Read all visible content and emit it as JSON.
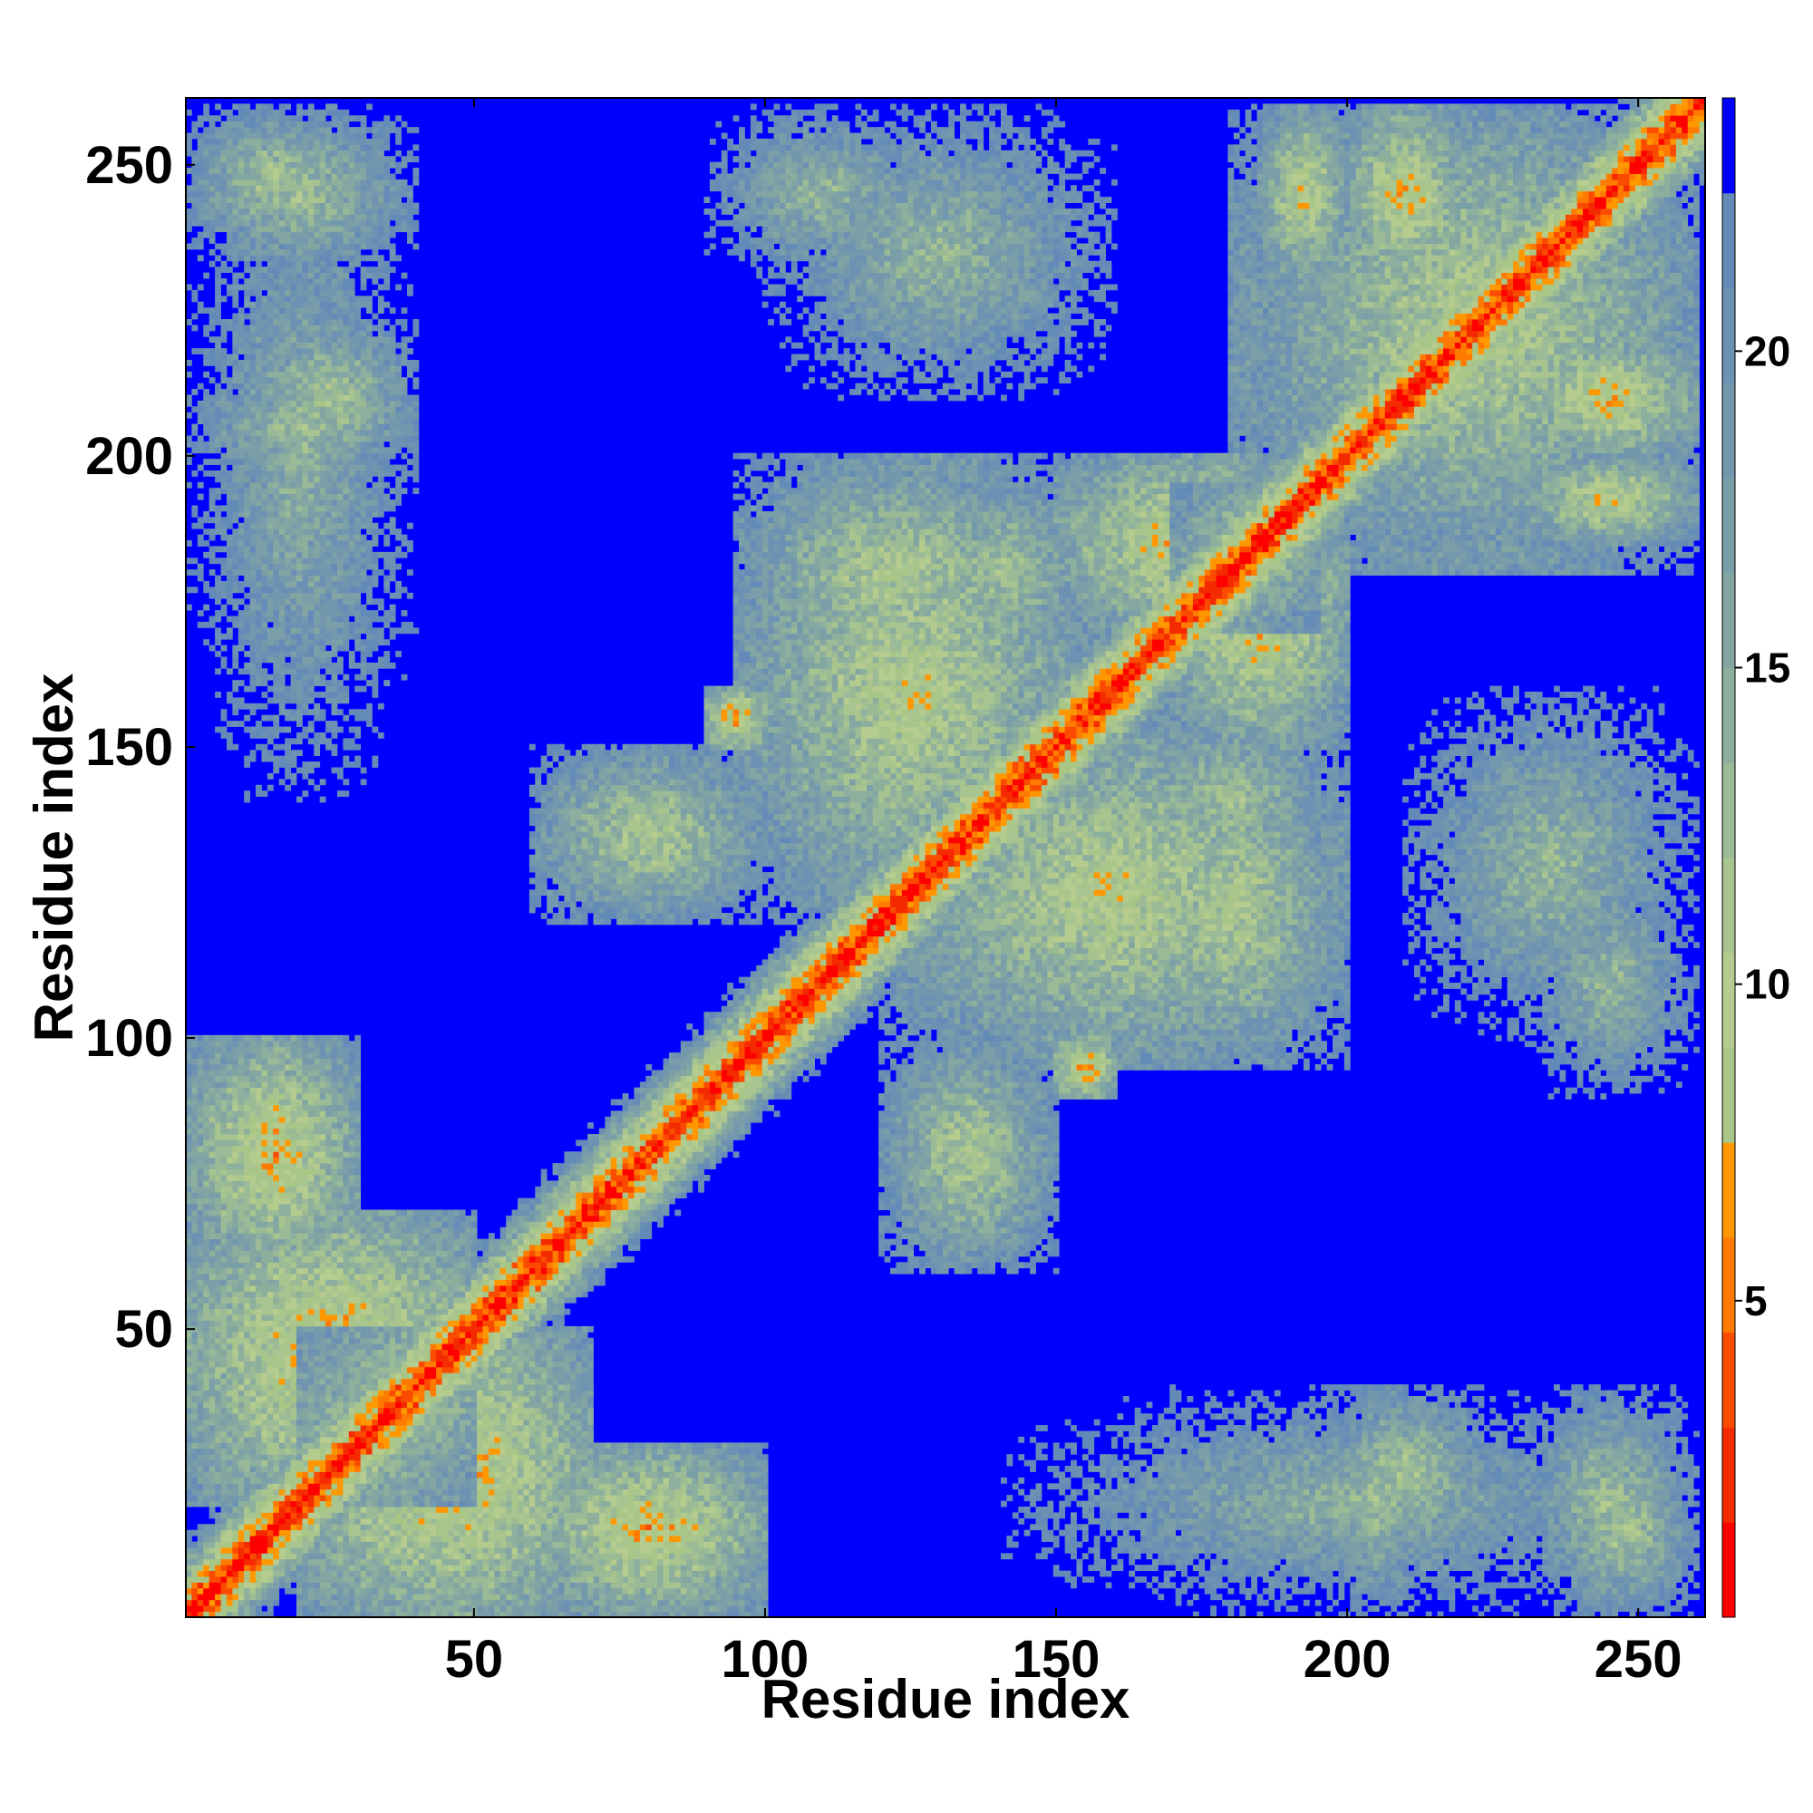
{
  "chart_data": {
    "type": "heatmap",
    "title": "",
    "xlabel": "Residue index",
    "ylabel": "Residue index",
    "n_residues": 261,
    "xlim": [
      1,
      261
    ],
    "ylim": [
      1,
      261
    ],
    "x_ticks": [
      50,
      100,
      150,
      200,
      250
    ],
    "y_ticks": [
      50,
      100,
      150,
      200,
      250
    ],
    "colorbar": {
      "range": [
        0,
        24
      ],
      "ticks": [
        5,
        10,
        15,
        20
      ],
      "bins": [
        {
          "from": 0,
          "to": 1.5,
          "color": "#ff0000"
        },
        {
          "from": 1.5,
          "to": 3,
          "color": "#f42a00"
        },
        {
          "from": 3,
          "to": 4.5,
          "color": "#fa4b00"
        },
        {
          "from": 4.5,
          "to": 6,
          "color": "#ff7a00"
        },
        {
          "from": 6,
          "to": 7.5,
          "color": "#ff9800"
        },
        {
          "from": 7.5,
          "to": 9,
          "color": "#a8c686"
        },
        {
          "from": 9,
          "to": 10.5,
          "color": "#b5cc8e"
        },
        {
          "from": 10.5,
          "to": 12,
          "color": "#a9c58f"
        },
        {
          "from": 12,
          "to": 13.5,
          "color": "#9bba96"
        },
        {
          "from": 13.5,
          "to": 15,
          "color": "#8daf9d"
        },
        {
          "from": 15,
          "to": 16.5,
          "color": "#84a6a2"
        },
        {
          "from": 16.5,
          "to": 18,
          "color": "#7b9fa8"
        },
        {
          "from": 18,
          "to": 19.5,
          "color": "#7398ae"
        },
        {
          "from": 19.5,
          "to": 21,
          "color": "#6c91b3"
        },
        {
          "from": 21,
          "to": 22.5,
          "color": "#648ab8"
        },
        {
          "from": 22.5,
          "to": 24,
          "color": "#0000ff"
        }
      ]
    },
    "distance_model": {
      "diagonal": true,
      "diagonal_width": 5,
      "off_diagonal_bands": [
        {
          "i": [
            1,
            30
          ],
          "j": [
            60,
            100
          ],
          "d": 7
        },
        {
          "i": [
            1,
            40
          ],
          "j": [
            140,
            260
          ],
          "d": 14
        },
        {
          "i": [
            20,
            70
          ],
          "j": [
            1,
            50
          ],
          "d": 6
        },
        {
          "i": [
            70,
            100
          ],
          "j": [
            1,
            30
          ],
          "d": 8
        },
        {
          "i": [
            95,
            155
          ],
          "j": [
            120,
            200
          ],
          "d": 9
        },
        {
          "i": [
            120,
            150
          ],
          "j": [
            60,
            100
          ],
          "d": 10
        },
        {
          "i": [
            150,
            160
          ],
          "j": [
            90,
            100
          ],
          "d": 5
        },
        {
          "i": [
            160,
            200
          ],
          "j": [
            95,
            150
          ],
          "d": 10
        },
        {
          "i": [
            170,
            200
          ],
          "j": [
            150,
            195
          ],
          "d": 7
        },
        {
          "i": [
            185,
            260
          ],
          "j": [
            180,
            260
          ],
          "d": 9
        },
        {
          "i": [
            185,
            200
          ],
          "j": [
            230,
            260
          ],
          "d": 8
        },
        {
          "i": [
            120,
            160
          ],
          "j": [
            160,
            200
          ],
          "d": 12
        },
        {
          "i": [
            200,
            220
          ],
          "j": [
            230,
            260
          ],
          "d": 7
        },
        {
          "i": [
            210,
            260
          ],
          "j": [
            100,
            160
          ],
          "d": 13
        },
        {
          "i": [
            230,
            260
          ],
          "j": [
            1,
            40
          ],
          "d": 12
        },
        {
          "i": [
            195,
            225
          ],
          "j": [
            10,
            40
          ],
          "d": 11
        },
        {
          "i": [
            90,
            130
          ],
          "j": [
            230,
            260
          ],
          "d": 13
        },
        {
          "i": [
            1,
            40
          ],
          "j": [
            195,
            215
          ],
          "d": 12
        },
        {
          "i": [
            1,
            30
          ],
          "j": [
            235,
            260
          ],
          "d": 11
        }
      ]
    }
  }
}
